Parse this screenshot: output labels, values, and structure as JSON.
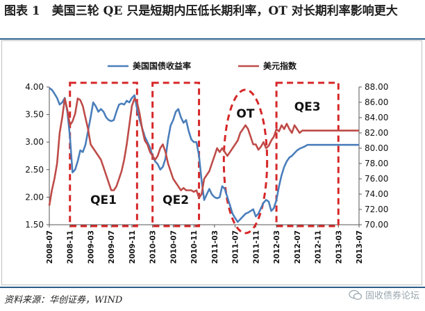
{
  "title": "图表 1　美国三轮 QE 只是短期内压低长期利率，OT 对长期利率影响更大",
  "source": "资料来源：华创证券，WIND",
  "watermark": "固收债券论坛",
  "colors": {
    "yield": "#4a7ebb",
    "dxy": "#be4b48",
    "box": "#d62728",
    "frame": "#2b5f8a"
  },
  "chart_data": {
    "type": "line",
    "legend": [
      "美国国债收益率",
      "美元指数"
    ],
    "legend_position": "top-center",
    "x_ticks": [
      "2008-07",
      "2008-11",
      "2009-03",
      "2009-07",
      "2009-11",
      "2010-03",
      "2010-07",
      "2010-11",
      "2011-03",
      "2011-07",
      "2011-11",
      "2012-03",
      "2012-07",
      "2012-11",
      "2013-03",
      "2013-07"
    ],
    "y_left": {
      "min": 1.5,
      "max": 4.0,
      "ticks": [
        "1.50",
        "2.00",
        "2.50",
        "3.00",
        "3.50",
        "4.00"
      ]
    },
    "y_right": {
      "min": 70,
      "max": 88,
      "ticks": [
        "70.00",
        "72.00",
        "74.00",
        "76.00",
        "78.00",
        "80.00",
        "82.00",
        "84.00",
        "86.00",
        "88.00"
      ]
    },
    "series": [
      {
        "name": "美国国债收益率",
        "axis": "left",
        "x": [
          0,
          0.5,
          1,
          1.5,
          2,
          2.5,
          3,
          3.5,
          4,
          4.5,
          5,
          5.5,
          6,
          6.5,
          7,
          7.5,
          8,
          8.5,
          9,
          9.5,
          10,
          10.5,
          11,
          11.5,
          12,
          12.5,
          13,
          13.5,
          14,
          14.5,
          15,
          15.5,
          16,
          16.5,
          17,
          17.5,
          18,
          18.5,
          19,
          19.5,
          20,
          20.5,
          21,
          21.5,
          22,
          22.5,
          23,
          23.5,
          24,
          24.5,
          25,
          25.5,
          26,
          26.5,
          27,
          27.5,
          28,
          28.5,
          29,
          29.5,
          30,
          30.5,
          31,
          31.5,
          32,
          32.5,
          33,
          33.5,
          34,
          34.5,
          35,
          35.5,
          36,
          36.5,
          37,
          37.5,
          38,
          38.5,
          39,
          39.5,
          40,
          40.5,
          41,
          41.5,
          42,
          42.5,
          43,
          43.5,
          44,
          44.5,
          45,
          45.5,
          46,
          46.5,
          47,
          47.5,
          48,
          48.5,
          49,
          49.5,
          50,
          50.5,
          51,
          51.5,
          52,
          52.5,
          53,
          53.5,
          54,
          54.5,
          55,
          55.5,
          56,
          56.5,
          57,
          57.5,
          58,
          58.5,
          59,
          59.5,
          60
        ],
        "values": [
          3.98,
          3.95,
          3.88,
          3.8,
          3.68,
          3.72,
          3.8,
          3.55,
          3.1,
          2.45,
          2.5,
          2.65,
          2.85,
          2.82,
          2.95,
          3.2,
          3.45,
          3.72,
          3.65,
          3.55,
          3.6,
          3.55,
          3.45,
          3.4,
          3.38,
          3.4,
          3.55,
          3.68,
          3.7,
          3.68,
          3.75,
          3.72,
          3.8,
          3.85,
          3.6,
          3.4,
          3.25,
          3.1,
          3.0,
          2.9,
          2.75,
          2.65,
          2.6,
          2.5,
          2.55,
          2.7,
          3.05,
          3.3,
          3.4,
          3.55,
          3.6,
          3.45,
          3.35,
          3.4,
          3.2,
          3.05,
          3.0,
          3.0,
          2.75,
          2.3,
          1.95,
          2.05,
          2.15,
          2.05,
          2.0,
          1.98,
          2.0,
          2.2,
          2.15,
          2.0,
          1.85,
          1.7,
          1.62,
          1.55,
          1.6,
          1.65,
          1.7,
          1.72,
          1.75,
          1.78,
          1.65,
          1.7,
          1.8,
          1.9,
          1.95,
          1.92,
          1.75,
          1.8,
          1.95,
          2.2,
          2.4,
          2.55,
          2.65,
          2.72,
          2.75,
          2.8,
          2.85,
          2.88,
          2.9,
          2.92,
          2.95,
          2.95,
          2.95,
          2.95,
          2.95,
          2.95,
          2.95,
          2.95,
          2.95,
          2.95,
          2.95,
          2.95,
          2.95,
          2.95,
          2.95,
          2.95,
          2.95,
          2.95,
          2.95,
          2.95,
          2.95
        ]
      },
      {
        "name": "美元指数",
        "axis": "right",
        "x": [
          0,
          0.5,
          1,
          1.5,
          2,
          2.5,
          3,
          3.5,
          4,
          4.5,
          5,
          5.5,
          6,
          6.5,
          7,
          7.5,
          8,
          8.5,
          9,
          9.5,
          10,
          10.5,
          11,
          11.5,
          12,
          12.5,
          13,
          13.5,
          14,
          14.5,
          15,
          15.5,
          16,
          16.5,
          17,
          17.5,
          18,
          18.5,
          19,
          19.5,
          20,
          20.5,
          21,
          21.5,
          22,
          22.5,
          23,
          23.5,
          24,
          24.5,
          25,
          25.5,
          26,
          26.5,
          27,
          27.5,
          28,
          28.5,
          29,
          29.5,
          30,
          30.5,
          31,
          31.5,
          32,
          32.5,
          33,
          33.5,
          34,
          34.5,
          35,
          35.5,
          36,
          36.5,
          37,
          37.5,
          38,
          38.5,
          39,
          39.5,
          40,
          40.5,
          41,
          41.5,
          42,
          42.5,
          43,
          43.5,
          44,
          44.5,
          45,
          45.5,
          46,
          46.5,
          47,
          47.5,
          48,
          48.5,
          49,
          49.5,
          50,
          50.5,
          51,
          51.5,
          52,
          52.5,
          53,
          53.5,
          54,
          54.5,
          55,
          55.5,
          56,
          56.5,
          57,
          57.5,
          58,
          58.5,
          59,
          59.5,
          60
        ],
        "values": [
          72.5,
          74.5,
          76,
          78,
          82,
          84,
          86.5,
          85,
          83,
          83.5,
          84.5,
          86.5,
          86.3,
          85.5,
          84,
          82.5,
          80.5,
          80,
          79.5,
          79,
          78.5,
          77.5,
          76.5,
          75.5,
          74.5,
          74.5,
          75,
          76,
          77,
          78.5,
          80.5,
          83,
          85.5,
          86.5,
          86,
          84.5,
          82.5,
          81,
          80.5,
          79.5,
          79,
          78.5,
          79,
          80,
          80.5,
          79.5,
          78,
          77,
          76,
          75.5,
          75,
          74.5,
          74.8,
          74.5,
          74.5,
          74.5,
          74.3,
          74.5,
          73.5,
          74,
          76,
          76.5,
          77,
          78,
          79,
          80,
          79.5,
          80,
          79.5,
          79,
          79.5,
          80,
          80.5,
          81,
          82,
          82.5,
          83,
          82.5,
          81.5,
          80.5,
          80.5,
          79.8,
          80.2,
          80.8,
          80,
          80.3,
          81,
          81.5,
          82.5,
          82.2,
          83,
          82.5,
          83.2,
          82.5,
          82,
          83,
          82.5,
          82,
          82.3,
          82.3,
          82.3,
          82.3,
          82.3,
          82.3,
          82.3,
          82.3,
          82.3,
          82.3,
          82.3,
          82.3,
          82.3,
          82.3,
          82.3,
          82.3,
          82.3,
          82.3,
          82.3,
          82.3,
          82.3,
          82.3,
          82.3
        ]
      }
    ],
    "annotations": [
      {
        "label": "QE1",
        "x_from": 4,
        "x_to": 17
      },
      {
        "label": "QE2",
        "x_from": 20,
        "x_to": 29
      },
      {
        "label": "OT",
        "x_from": 33,
        "x_to": 43
      },
      {
        "label": "QE3",
        "x_from": 44,
        "x_to": 56
      }
    ]
  }
}
